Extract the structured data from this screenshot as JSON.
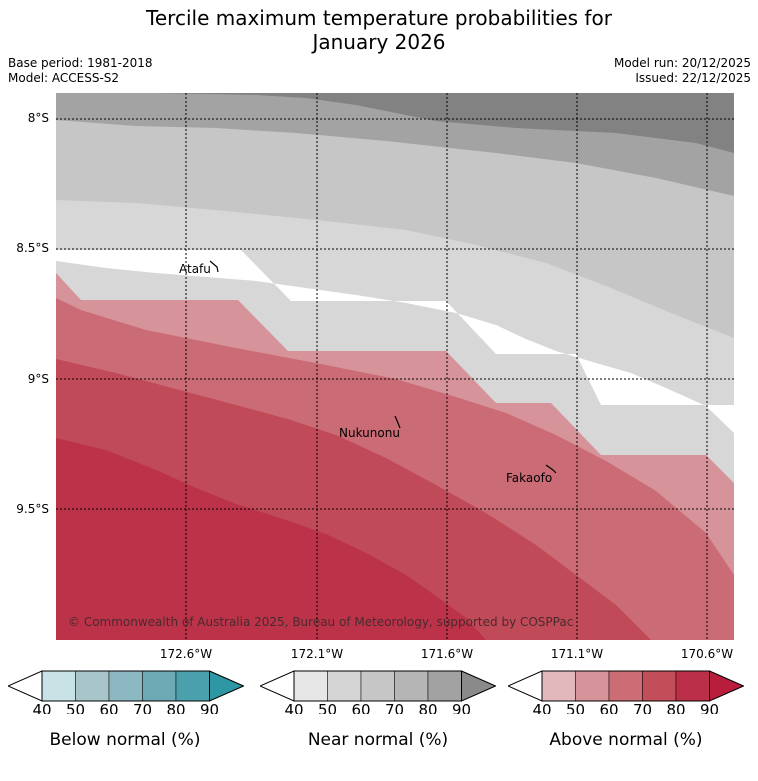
{
  "title_line1": "Tercile maximum temperature probabilities for",
  "title_line2": "January 2026",
  "base_period": "Base period: 1981-2018",
  "model": "Model: ACCESS-S2",
  "model_run": "Model run: 20/12/2025",
  "issued": "Issued: 22/12/2025",
  "copyright": "© Commonwealth of Australia 2025, Bureau of Meteorology, supported by COSPPac",
  "lat_labels": [
    "8°S",
    "8.5°S",
    "9°S",
    "9.5°S"
  ],
  "lon_labels": [
    "172.6°W",
    "172.1°W",
    "171.6°W",
    "171.1°W",
    "170.6°W"
  ],
  "places": [
    "Atafu",
    "Nukunonu",
    "Fakaofo"
  ],
  "colorbars": {
    "below": {
      "title": "Below normal (%)",
      "ticks": [
        "40",
        "50",
        "60",
        "70",
        "80",
        "90"
      ],
      "colors": [
        "#c9e2e6",
        "#a8c6ca",
        "#8cb8c1",
        "#6eaab5",
        "#4aa1ad",
        "#2e97a4"
      ]
    },
    "near": {
      "title": "Near normal (%)",
      "ticks": [
        "40",
        "50",
        "60",
        "70",
        "80",
        "90"
      ],
      "colors": [
        "#e6e6e6",
        "#d5d5d5",
        "#c6c6c6",
        "#b5b5b5",
        "#a2a2a2",
        "#8a8a8a"
      ]
    },
    "above": {
      "title": "Above normal (%)",
      "ticks": [
        "40",
        "50",
        "60",
        "70",
        "80",
        "90"
      ],
      "colors": [
        "#e2b8bd",
        "#d6939a",
        "#cc6d76",
        "#c24e5a",
        "#bb3048",
        "#b81e3b"
      ]
    }
  }
}
